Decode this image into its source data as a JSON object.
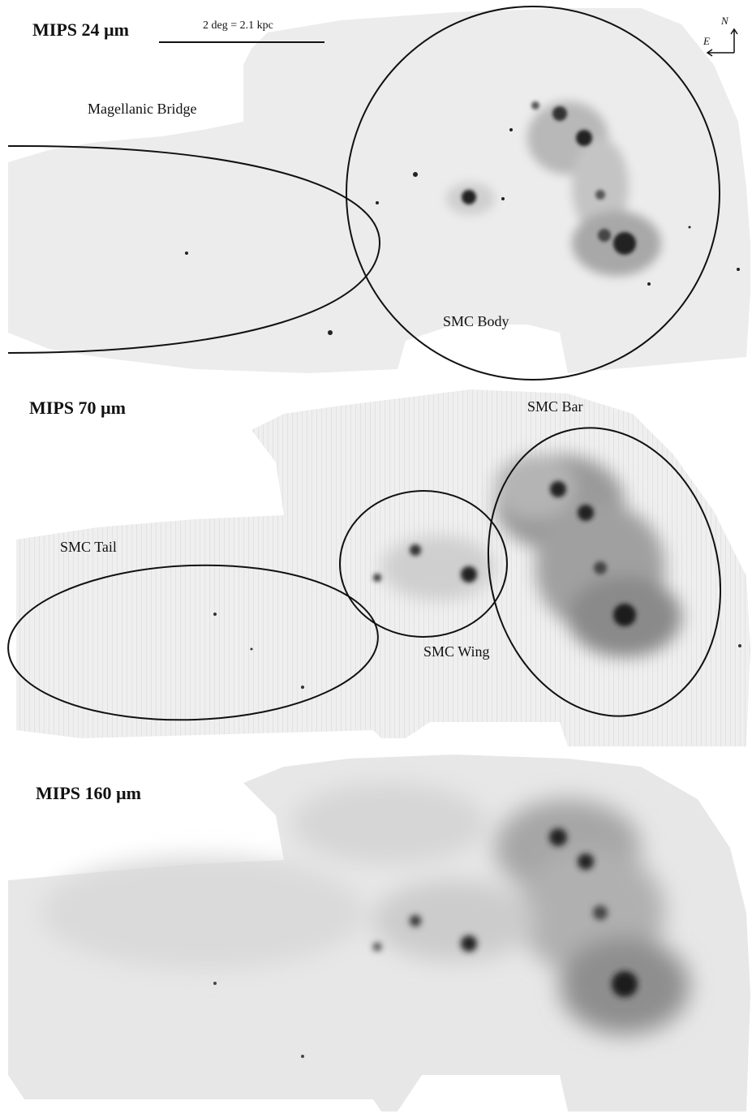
{
  "panels": [
    {
      "title": "MIPS 24  µm",
      "labels": {
        "bridge": "Magellanic Bridge",
        "body": "SMC Body"
      }
    },
    {
      "title": "MIPS 70  µm",
      "labels": {
        "bar": "SMC Bar",
        "tail": "SMC Tail",
        "wing": "SMC Wing"
      }
    },
    {
      "title": "MIPS 160 µm",
      "labels": {}
    }
  ],
  "scale_bar": {
    "text": "2 deg = 2.1 kpc"
  },
  "compass": {
    "north": "N",
    "east": "E"
  },
  "colors": {
    "background": "#ffffff",
    "map_fill": "#ededed",
    "emission": "#111111",
    "outline": "#111111"
  }
}
